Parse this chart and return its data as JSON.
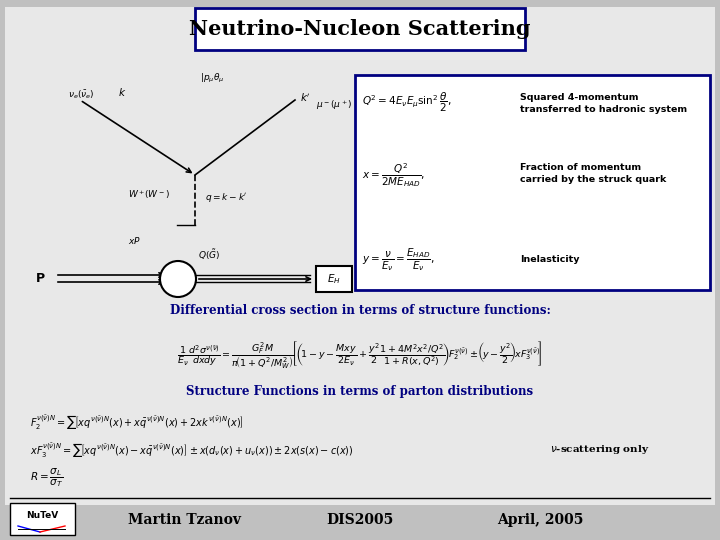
{
  "title": "Neutrino-Nucleon Scattering",
  "title_fontsize": 15,
  "title_box_color": "#000080",
  "bg_color": "#c0c0c0",
  "slide_bg": "#e0e0e0",
  "footer_left": "Martin Tzanov",
  "footer_center": "DIS2005",
  "footer_right": "April, 2005",
  "footer_fontsize": 10,
  "box1_label1": "Squared 4-momentum",
  "box1_label2": "transferred to hadronic system",
  "box1_label3": "Fraction of momentum",
  "box1_label4": "carried by the struck quark",
  "box1_label5": "Inelasticity",
  "diff_label": "Differential cross section in terms of structure functions:",
  "struct_label": "Structure Functions in terms of parton distributions",
  "nu_label": "$\\nu$-scattering only",
  "box_border_color": "#000080",
  "label_color_blue": "#000080"
}
